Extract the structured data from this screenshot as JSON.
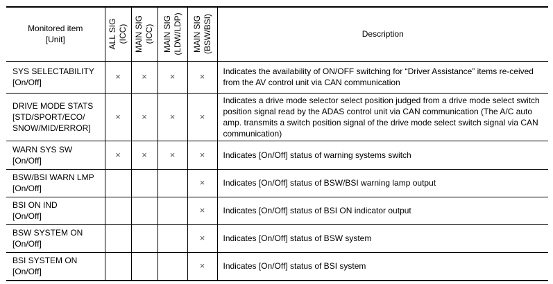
{
  "headers": {
    "item": "Monitored item",
    "unit": "[Unit]",
    "sig_columns": [
      {
        "line1": "ALL SIG",
        "line2": "(ICC)"
      },
      {
        "line1": "MAIN SIG",
        "line2": "(ICC)"
      },
      {
        "line1": "MAIN SIG",
        "line2": "(LDW/LDP)"
      },
      {
        "line1": "MAIN SIG",
        "line2": "(BSW/BSI)"
      }
    ],
    "description": "Description"
  },
  "rows": [
    {
      "item": "SYS SELECTABILITY\n[On/Off]",
      "marks": [
        "×",
        "×",
        "×",
        "×"
      ],
      "description": "Indicates the availability of ON/OFF switching for “Driver Assistance” items re-ceived from the AV control unit via CAN communication"
    },
    {
      "item": "DRIVE MODE STATS\n[STD/SPORT/ECO/\nSNOW/MID/ERROR]",
      "marks": [
        "×",
        "×",
        "×",
        "×"
      ],
      "description": "Indicates a drive mode selector select position judged from a drive mode select switch position signal read by the ADAS control unit via CAN communication (The A/C auto amp. transmits a switch position signal of the drive mode select switch signal via CAN communication)"
    },
    {
      "item": "WARN SYS SW\n[On/Off]",
      "marks": [
        "×",
        "×",
        "×",
        "×"
      ],
      "description": "Indicates [On/Off] status of warning systems switch"
    },
    {
      "item": "BSW/BSI WARN LMP\n[On/Off]",
      "marks": [
        "",
        "",
        "",
        "×"
      ],
      "description": "Indicates [On/Off] status of BSW/BSI warning lamp output"
    },
    {
      "item": "BSI ON IND\n[On/Off]",
      "marks": [
        "",
        "",
        "",
        "×"
      ],
      "description": "Indicates [On/Off] status of BSI ON indicator output"
    },
    {
      "item": "BSW SYSTEM ON\n[On/Off]",
      "marks": [
        "",
        "",
        "",
        "×"
      ],
      "description": "Indicates [On/Off] status of BSW system"
    },
    {
      "item": "BSI SYSTEM ON\n[On/Off]",
      "marks": [
        "",
        "",
        "",
        "×"
      ],
      "description": "Indicates [On/Off] status of BSI system"
    }
  ]
}
